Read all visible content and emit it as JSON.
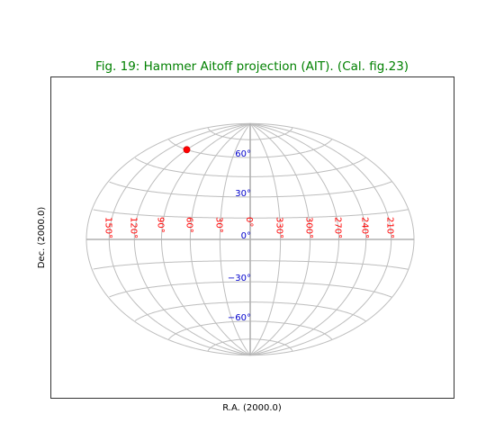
{
  "chart_data": {
    "type": "scatter",
    "projection": "Hammer Aitoff (AIT)",
    "title": "Fig. 19: Hammer Aitoff projection (AIT). (Cal. fig.23)",
    "xlabel": "R.A. (2000.0)",
    "ylabel": "Dec. (2000.0)",
    "center_longitude": 0,
    "graticule": {
      "meridians": [
        0,
        30,
        60,
        90,
        120,
        150,
        180,
        210,
        240,
        270,
        300,
        330
      ],
      "parallels": [
        -90,
        -75,
        -60,
        -45,
        -30,
        -15,
        0,
        15,
        30,
        45,
        60,
        75,
        90
      ]
    },
    "lon_ticks": [
      {
        "lon": 150,
        "label": "150°"
      },
      {
        "lon": 120,
        "label": "120°"
      },
      {
        "lon": 90,
        "label": "90°"
      },
      {
        "lon": 60,
        "label": "60°"
      },
      {
        "lon": 30,
        "label": "30°"
      },
      {
        "lon": 0,
        "label": "0°"
      },
      {
        "lon": 330,
        "label": "330°"
      },
      {
        "lon": 300,
        "label": "300°"
      },
      {
        "lon": 270,
        "label": "270°"
      },
      {
        "lon": 240,
        "label": "240°"
      },
      {
        "lon": 210,
        "label": "210°"
      }
    ],
    "lat_ticks": [
      {
        "lat": 60,
        "label": "60°"
      },
      {
        "lat": 30,
        "label": "30°"
      },
      {
        "lat": 0,
        "label": "0°"
      },
      {
        "lat": -30,
        "label": "−30°"
      },
      {
        "lat": -60,
        "label": "−60°"
      }
    ],
    "points": [
      {
        "lon": 120,
        "lat": 60
      }
    ],
    "colors": {
      "title": "#008000",
      "lon_labels": "#ff0000",
      "lat_labels": "#0000cc",
      "grid": "#bdbdbd",
      "marker": "#ff0000"
    }
  }
}
